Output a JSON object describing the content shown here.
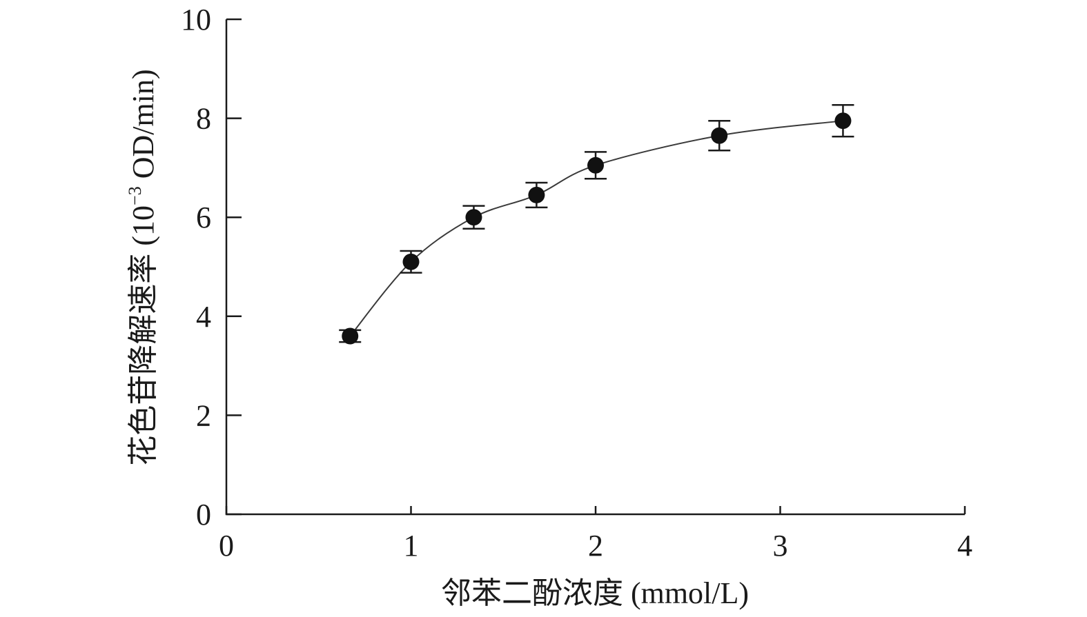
{
  "chart_data": {
    "type": "line",
    "title": "",
    "xlabel": "邻苯二酚浓度 (mmol/L)",
    "ylabel": {
      "main": "花色苷降解速率 (10",
      "superscript": "−3",
      "tail": " OD/min)"
    },
    "xlim": [
      0,
      4
    ],
    "ylim": [
      0,
      10
    ],
    "xticks": [
      0,
      1,
      2,
      3,
      4
    ],
    "yticks": [
      0,
      2,
      4,
      6,
      8,
      10
    ],
    "xtick_labels": [
      "0",
      "1",
      "2",
      "3",
      "4"
    ],
    "ytick_labels": [
      "0",
      "2",
      "4",
      "6",
      "8",
      "10"
    ],
    "grid": false,
    "legend": "none",
    "series": [
      {
        "x": [
          0.67,
          1.0,
          1.34,
          1.68,
          2.0,
          2.67,
          3.34
        ],
        "y": [
          3.6,
          5.1,
          6.0,
          6.45,
          7.05,
          7.65,
          7.95
        ],
        "error": [
          0.12,
          0.22,
          0.23,
          0.25,
          0.27,
          0.3,
          0.32
        ]
      }
    ]
  }
}
